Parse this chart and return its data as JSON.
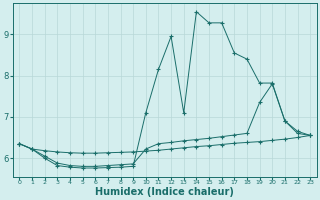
{
  "bg_color": "#d4eeee",
  "line_color": "#1a6e6a",
  "grid_color": "#b8d8d8",
  "xlabel": "Humidex (Indice chaleur)",
  "xlabel_fontsize": 7,
  "yticks": [
    6,
    7,
    8,
    9
  ],
  "xticks": [
    0,
    1,
    2,
    3,
    4,
    5,
    6,
    7,
    8,
    9,
    10,
    11,
    12,
    13,
    14,
    15,
    16,
    17,
    18,
    19,
    20,
    21,
    22,
    23
  ],
  "xlim": [
    -0.5,
    23.5
  ],
  "ylim": [
    5.55,
    9.75
  ],
  "series": [
    {
      "x": [
        0,
        1,
        2,
        3,
        4,
        5,
        6,
        7,
        8,
        9,
        10,
        11,
        12,
        13,
        14,
        15,
        16,
        17,
        18,
        19,
        20,
        21,
        22,
        23
      ],
      "y": [
        6.35,
        6.22,
        6.18,
        6.15,
        6.13,
        6.12,
        6.12,
        6.13,
        6.14,
        6.15,
        6.17,
        6.19,
        6.22,
        6.25,
        6.28,
        6.3,
        6.33,
        6.36,
        6.38,
        6.4,
        6.43,
        6.46,
        6.5,
        6.55
      ]
    },
    {
      "x": [
        0,
        1,
        2,
        3,
        4,
        5,
        6,
        7,
        8,
        9,
        10,
        11,
        12,
        13,
        14,
        15,
        16,
        17,
        18,
        19,
        20,
        21,
        22,
        23
      ],
      "y": [
        6.35,
        6.22,
        6.05,
        5.88,
        5.82,
        5.8,
        5.8,
        5.82,
        5.84,
        5.86,
        6.22,
        6.35,
        6.38,
        6.42,
        6.45,
        6.48,
        6.52,
        6.56,
        6.6,
        7.35,
        7.8,
        6.9,
        6.6,
        6.55
      ]
    },
    {
      "x": [
        0,
        1,
        2,
        3,
        4,
        5,
        6,
        7,
        8,
        9,
        10,
        11,
        12,
        13,
        14,
        15,
        16,
        17,
        18,
        19,
        20,
        21,
        22,
        23
      ],
      "y": [
        6.35,
        6.22,
        6.0,
        5.82,
        5.78,
        5.76,
        5.76,
        5.77,
        5.78,
        5.8,
        7.1,
        8.15,
        8.95,
        7.1,
        9.55,
        9.28,
        9.28,
        8.55,
        8.4,
        7.82,
        7.82,
        6.9,
        6.65,
        6.55
      ]
    }
  ]
}
